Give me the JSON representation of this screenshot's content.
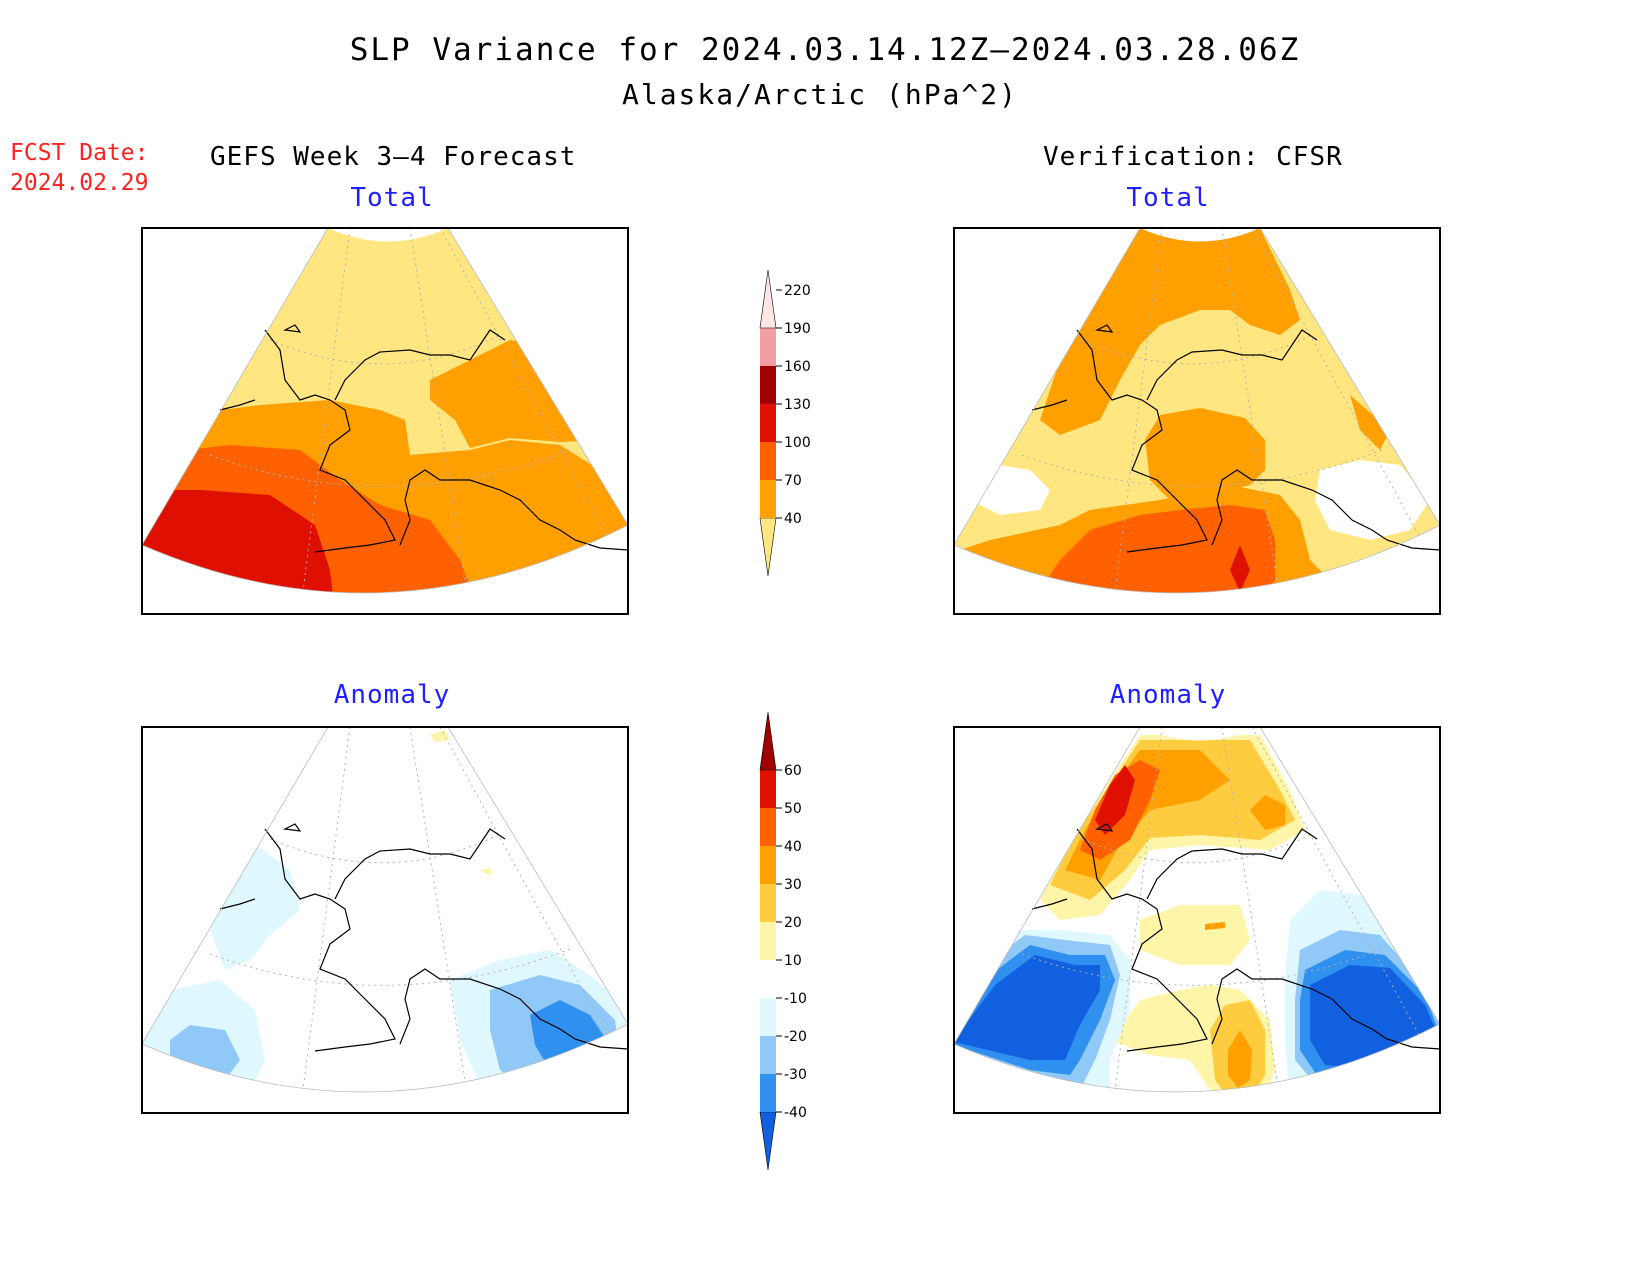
{
  "title": {
    "line1": "SLP Variance for 2024.03.14.12Z–2024.03.28.06Z",
    "line2": "Alaska/Arctic (hPa^2)"
  },
  "fcst_date": {
    "label": "FCST Date:",
    "value": "2024.02.29"
  },
  "headers": {
    "left": "GEFS Week 3–4 Forecast",
    "right": "Verification: CFSR"
  },
  "panels": {
    "forecast_total": "Total",
    "verification_total": "Total",
    "forecast_anomaly": "Anomaly",
    "verification_anomaly": "Anomaly"
  },
  "colorbars": {
    "total": {
      "levels": [
        "40",
        "70",
        "100",
        "130",
        "160",
        "190",
        "220"
      ],
      "colors": [
        "#ffe680",
        "#ffa000",
        "#ff6000",
        "#e01000",
        "#a00000",
        "#f0a0a0",
        "#ffe6e6"
      ]
    },
    "anomaly": {
      "levels": [
        "-40",
        "-30",
        "-20",
        "-10",
        "10",
        "20",
        "30",
        "40",
        "50",
        "60"
      ],
      "colors": [
        "#1060e0",
        "#3090f0",
        "#90c8f8",
        "#dff8ff",
        "#ffffff",
        "#fff5a8",
        "#ffcc40",
        "#ffa000",
        "#ff6000",
        "#e01000",
        "#a00000"
      ]
    }
  }
}
